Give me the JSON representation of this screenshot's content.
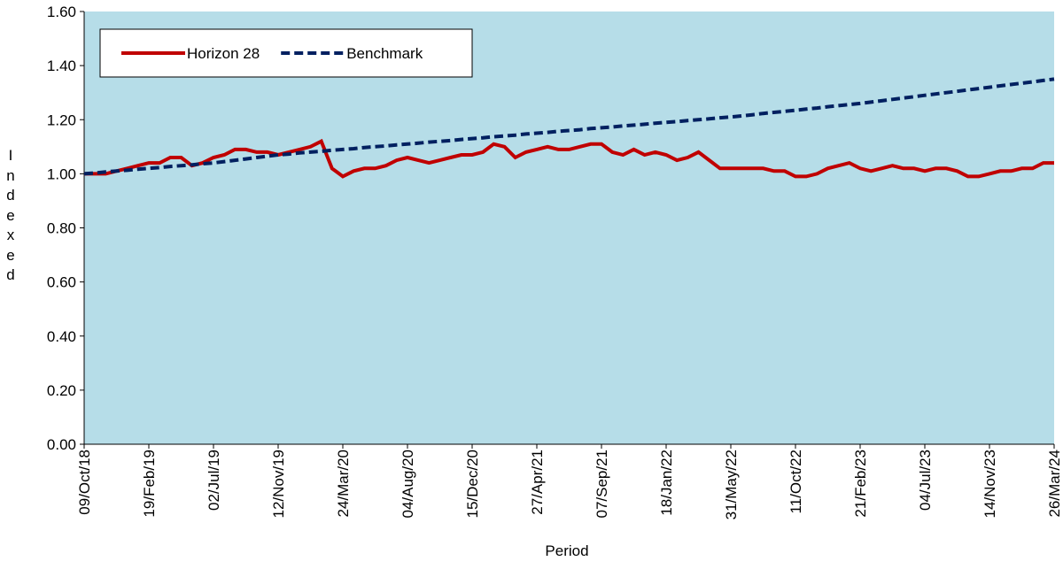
{
  "chart_data": {
    "type": "line",
    "y_label": "Indexed",
    "x_label": "Period",
    "categories": [
      "09/Oct/18",
      null,
      null,
      null,
      null,
      null,
      "19/Feb/19",
      null,
      null,
      null,
      null,
      null,
      "02/Jul/19",
      null,
      null,
      null,
      null,
      null,
      "12/Nov/19",
      null,
      null,
      null,
      null,
      null,
      "24/Mar/20",
      null,
      null,
      null,
      null,
      null,
      "04/Aug/20",
      null,
      null,
      null,
      null,
      null,
      "15/Dec/20",
      null,
      null,
      null,
      null,
      null,
      "27/Apr/21",
      null,
      null,
      null,
      null,
      null,
      "07/Sep/21",
      null,
      null,
      null,
      null,
      null,
      "18/Jan/22",
      null,
      null,
      null,
      null,
      null,
      "31/May/22",
      null,
      null,
      null,
      null,
      null,
      "11/Oct/22",
      null,
      null,
      null,
      null,
      null,
      "21/Feb/23",
      null,
      null,
      null,
      null,
      null,
      "04/Jul/23",
      null,
      null,
      null,
      null,
      null,
      "14/Nov/23",
      null,
      null,
      null,
      null,
      null,
      "26/Mar/24"
    ],
    "series": [
      {
        "name": "Horizon 28",
        "color": "#c00000",
        "dash": false,
        "values": [
          1.0,
          1.0,
          1.0,
          1.01,
          1.02,
          1.03,
          1.04,
          1.04,
          1.06,
          1.06,
          1.03,
          1.04,
          1.06,
          1.07,
          1.09,
          1.09,
          1.08,
          1.08,
          1.07,
          1.08,
          1.09,
          1.1,
          1.12,
          1.02,
          0.99,
          1.01,
          1.02,
          1.02,
          1.03,
          1.05,
          1.06,
          1.05,
          1.04,
          1.05,
          1.06,
          1.07,
          1.07,
          1.08,
          1.11,
          1.1,
          1.06,
          1.08,
          1.09,
          1.1,
          1.09,
          1.09,
          1.1,
          1.11,
          1.11,
          1.08,
          1.07,
          1.09,
          1.07,
          1.08,
          1.07,
          1.05,
          1.06,
          1.08,
          1.05,
          1.02,
          1.02,
          1.02,
          1.02,
          1.02,
          1.01,
          1.01,
          0.99,
          0.99,
          1.0,
          1.02,
          1.03,
          1.04,
          1.02,
          1.01,
          1.02,
          1.03,
          1.02,
          1.02,
          1.01,
          1.02,
          1.02,
          1.01,
          0.99,
          0.99,
          1.0,
          1.01,
          1.01,
          1.02,
          1.02,
          1.04,
          1.04
        ]
      },
      {
        "name": "Benchmark",
        "color": "#002060",
        "dash": true,
        "values": [
          1.0,
          1.003,
          1.007,
          1.01,
          1.013,
          1.017,
          1.02,
          1.023,
          1.027,
          1.03,
          1.033,
          1.037,
          1.04,
          1.045,
          1.05,
          1.055,
          1.06,
          1.065,
          1.07,
          1.073,
          1.077,
          1.08,
          1.083,
          1.087,
          1.09,
          1.093,
          1.097,
          1.1,
          1.103,
          1.107,
          1.11,
          1.113,
          1.117,
          1.12,
          1.123,
          1.127,
          1.13,
          1.133,
          1.137,
          1.14,
          1.143,
          1.147,
          1.15,
          1.153,
          1.157,
          1.16,
          1.163,
          1.167,
          1.17,
          1.173,
          1.177,
          1.18,
          1.183,
          1.187,
          1.19,
          1.193,
          1.197,
          1.2,
          1.203,
          1.207,
          1.21,
          1.214,
          1.218,
          1.223,
          1.227,
          1.231,
          1.235,
          1.239,
          1.243,
          1.248,
          1.252,
          1.256,
          1.26,
          1.265,
          1.27,
          1.275,
          1.28,
          1.285,
          1.29,
          1.295,
          1.3,
          1.305,
          1.31,
          1.315,
          1.32,
          1.325,
          1.33,
          1.335,
          1.34,
          1.345,
          1.35
        ]
      }
    ],
    "ylim": [
      0,
      1.6
    ],
    "yticks": [
      {
        "value": 0,
        "label": "0.00"
      },
      {
        "value": 0.2,
        "label": "0.20"
      },
      {
        "value": 0.4,
        "label": "0.40"
      },
      {
        "value": 0.6,
        "label": "0.60"
      },
      {
        "value": 0.8,
        "label": "0.80"
      },
      {
        "value": 1,
        "label": "1.00"
      },
      {
        "value": 1.2,
        "label": "1.20"
      },
      {
        "value": 1.4,
        "label": "1.40"
      },
      {
        "value": 1.6,
        "label": "1.60"
      }
    ],
    "plot_background": "#b6dde8",
    "legend": "upper left"
  }
}
